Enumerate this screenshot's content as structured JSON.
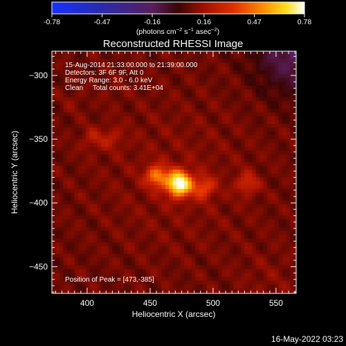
{
  "chart_data": {
    "type": "heatmap",
    "title": "Reconstructed RHESSI Image",
    "xlabel": "Heliocentric X (arcsec)",
    "ylabel": "Heliocentric Y (arcsec)",
    "xlim": [
      372,
      566
    ],
    "ylim": [
      -471,
      -281
    ],
    "x_ticks": [
      400,
      450,
      500,
      550
    ],
    "y_ticks": [
      -300,
      -350,
      -400,
      -450
    ],
    "colorbar": {
      "range": [
        -0.78,
        0.78
      ],
      "ticks": [
        "-0.78",
        "-0.47",
        "-0.16",
        "0.16",
        "0.47",
        "0.78"
      ],
      "unit_text": "(photons cm-2 s-1 asec-2)",
      "colormap": "RHESSI / IDL red-temperature (blue-purple-red-yellow-white)"
    },
    "annotations": [
      "15-Aug-2014 21:33:00.000 to 21:39:00.000",
      "Detectors: 3F 6F 9F, Att 0",
      "Energy Range: 3.0 - 6.0 keV",
      "Clean     Total counts: 3.41E+04"
    ],
    "peak_text": "Position of Peak = [473,-385]",
    "peak": {
      "x": 473,
      "y": -385,
      "value": 0.78
    },
    "sources": [
      {
        "x": 473,
        "y": -385,
        "value": 0.78,
        "note": "main peak"
      },
      {
        "x": 455,
        "y": -379,
        "value": 0.45
      },
      {
        "x": 493,
        "y": -388,
        "value": 0.35
      },
      {
        "x": 527,
        "y": -385,
        "value": 0.3
      },
      {
        "x": 404,
        "y": -350,
        "value": 0.22
      },
      {
        "x": 420,
        "y": -349,
        "value": 0.22
      },
      {
        "x": 390,
        "y": -320,
        "value": 0.14
      },
      {
        "x": 420,
        "y": -313,
        "value": 0.12
      }
    ],
    "negative_region": {
      "corner": "upper-right",
      "min_value": -0.2
    },
    "background_value": 0.09
  },
  "footer": {
    "timestamp": "16-May-2022 03:23"
  }
}
